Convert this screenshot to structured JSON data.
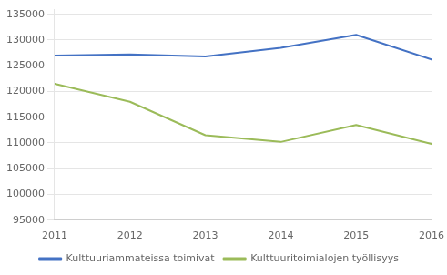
{
  "chart_data": {
    "type": "line",
    "x": [
      2011,
      2012,
      2013,
      2014,
      2015,
      2016
    ],
    "series": [
      {
        "name": "Kulttuuriammateissa toimivat",
        "color": "#4472C4",
        "values": [
          127000,
          127200,
          126800,
          128500,
          131000,
          126200
        ]
      },
      {
        "name": "Kulttuuritoimialojen työllisyys",
        "color": "#9BBB59",
        "values": [
          121500,
          118000,
          111500,
          110200,
          113500,
          109800
        ]
      }
    ],
    "xlim": [
      2011,
      2016
    ],
    "xticks": [
      2011,
      2012,
      2013,
      2014,
      2015,
      2016
    ],
    "ylim": [
      95000,
      136000
    ],
    "yticks": [
      95000,
      100000,
      105000,
      110000,
      115000,
      120000,
      125000,
      130000,
      135000
    ],
    "grid": "y",
    "legend": "bottom"
  }
}
